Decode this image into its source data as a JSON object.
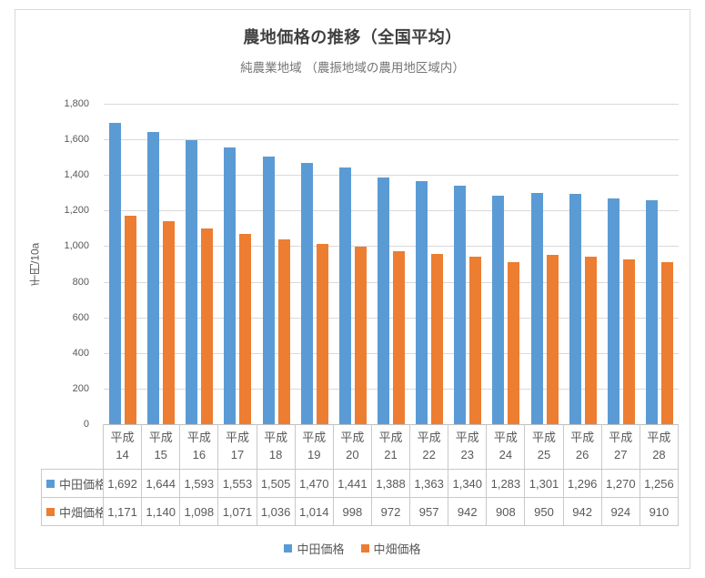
{
  "chart_data": {
    "type": "bar",
    "title": "農地価格の推移（全国平均）",
    "subtitle": "純農業地域 （農振地域の農用地区域内）",
    "ylabel": "千円/10a",
    "ylim": [
      0,
      1800
    ],
    "ytick_step": 200,
    "y_ticks": [
      "0",
      "200",
      "400",
      "600",
      "800",
      "1,000",
      "1,200",
      "1,400",
      "1,600",
      "1,800"
    ],
    "grid": true,
    "legend_position": "bottom",
    "categories": [
      "平成14",
      "平成15",
      "平成16",
      "平成17",
      "平成18",
      "平成19",
      "平成20",
      "平成21",
      "平成22",
      "平成23",
      "平成24",
      "平成25",
      "平成26",
      "平成27",
      "平成28"
    ],
    "category_header_line1": "平成",
    "category_header_line2": [
      "14",
      "15",
      "16",
      "17",
      "18",
      "19",
      "20",
      "21",
      "22",
      "23",
      "24",
      "25",
      "26",
      "27",
      "28"
    ],
    "series": [
      {
        "name": "中田価格",
        "color": "#5B9BD5",
        "values": [
          1692,
          1644,
          1593,
          1553,
          1505,
          1470,
          1441,
          1388,
          1363,
          1340,
          1283,
          1301,
          1296,
          1270,
          1256
        ],
        "formatted": [
          "1,692",
          "1,644",
          "1,593",
          "1,553",
          "1,505",
          "1,470",
          "1,441",
          "1,388",
          "1,363",
          "1,340",
          "1,283",
          "1,301",
          "1,296",
          "1,270",
          "1,256"
        ]
      },
      {
        "name": "中畑価格",
        "color": "#ED7D31",
        "values": [
          1171,
          1140,
          1098,
          1071,
          1036,
          1014,
          998,
          972,
          957,
          942,
          908,
          950,
          942,
          924,
          910
        ],
        "formatted": [
          "1,171",
          "1,140",
          "1,098",
          "1,071",
          "1,036",
          "1,014",
          "998",
          "972",
          "957",
          "942",
          "908",
          "950",
          "942",
          "924",
          "910"
        ]
      }
    ],
    "colors": {
      "grid": "#D9D9D9",
      "axis": "#BFBFBF",
      "table_border": "#C9C9C9",
      "title_text": "#404040",
      "label_text": "#595959"
    }
  }
}
